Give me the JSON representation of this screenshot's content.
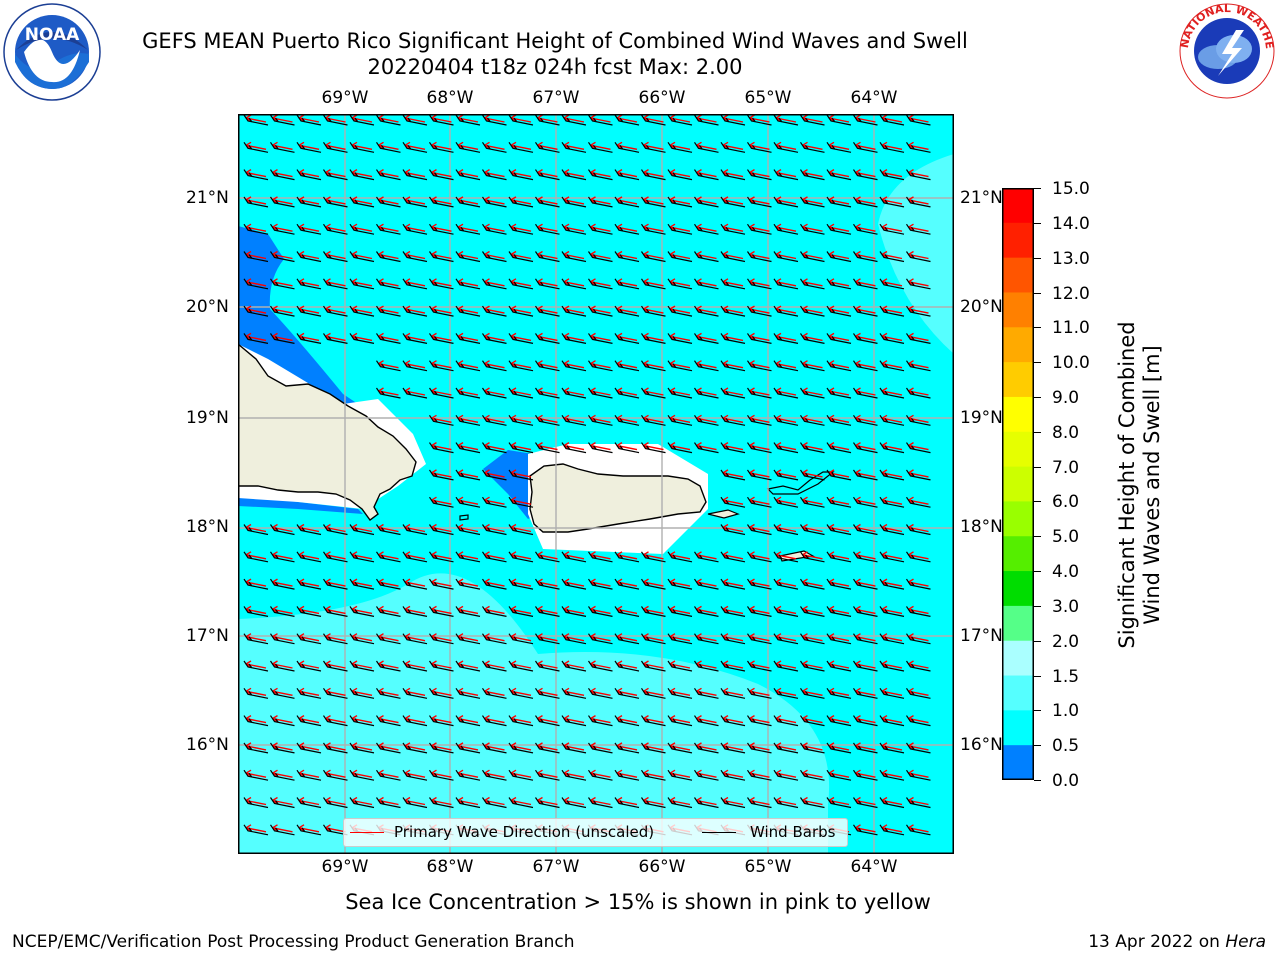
{
  "title": {
    "line1": "GEFS MEAN Puerto Rico Significant Height of Combined Wind Waves and Swell",
    "line2": "20220404 t18z 024h fcst   Max: 2.00"
  },
  "logos": {
    "left": {
      "icon": "noaa-logo",
      "text": "NOAA"
    },
    "right": {
      "icon": "nws-logo",
      "text": "NATIONAL WEATHER SERVICE"
    }
  },
  "map": {
    "lon_labels": [
      "69°W",
      "68°W",
      "67°W",
      "66°W",
      "65°W",
      "64°W"
    ],
    "lat_labels": [
      "21°N",
      "20°N",
      "19°N",
      "18°N",
      "17°N",
      "16°N"
    ],
    "ocean_color": "#00ffff",
    "low_wave_color": "#0080ff",
    "high_wave_color": "#55ffff",
    "land_color": "#efefdd",
    "wave_arrow_color": "#ff0000",
    "barb_color": "#000000"
  },
  "legend": {
    "wave_dir": "Primary Wave Direction (unscaled)",
    "wind_barbs": "Wind Barbs"
  },
  "colorbar": {
    "title_line1": "Significant Height of Combined",
    "title_line2": "Wind Waves and Swell [m]",
    "ticks": [
      "15.0",
      "14.0",
      "13.0",
      "12.0",
      "11.0",
      "10.0",
      "9.0",
      "8.0",
      "7.0",
      "6.0",
      "5.0",
      "4.0",
      "3.0",
      "2.0",
      "1.5",
      "1.0",
      "0.5",
      "0.0"
    ],
    "colors": [
      "#ff0000",
      "#ff2000",
      "#ff5500",
      "#ff8000",
      "#ffaa00",
      "#ffcc00",
      "#ffff00",
      "#e6ff00",
      "#ccff00",
      "#99ff00",
      "#55ee00",
      "#00dd00",
      "#55ff88",
      "#aaffff",
      "#55ffff",
      "#00ffff",
      "#0080ff",
      "#0000ff"
    ]
  },
  "caption": "Sea Ice Concentration > 15% is shown in pink to yellow",
  "footer": {
    "left": "NCEP/EMC/Verification Post Processing Product Generation Branch",
    "right_date": "13 Apr 2022 on ",
    "right_host": "Hera"
  }
}
